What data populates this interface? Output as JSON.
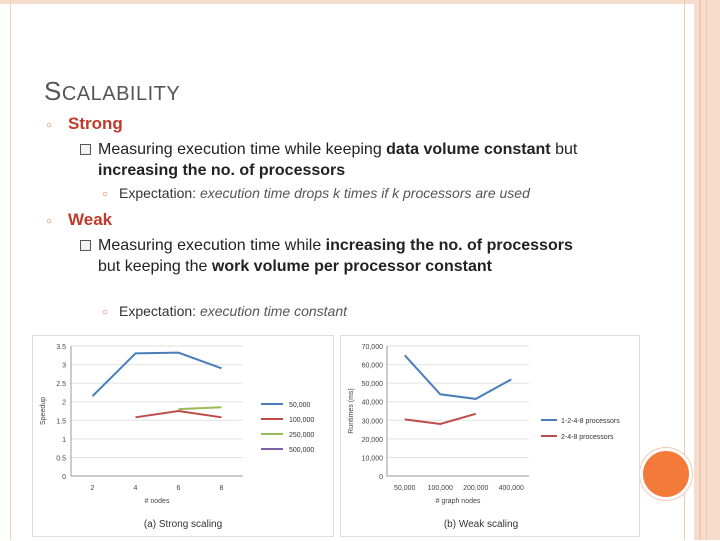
{
  "title": {
    "first": "S",
    "rest": "CALABILITY"
  },
  "strong": {
    "heading": "Strong",
    "desc_parts": [
      "Measuring execution time while keeping ",
      "data volume constant",
      " but ",
      "increasing the no. of processors"
    ],
    "expectation_label": "Expectation: ",
    "expectation_value": "execution time drops k times if k processors are used"
  },
  "weak": {
    "heading": "Weak",
    "desc_parts": [
      "Measuring execution time while ",
      "increasing the no. of processors",
      " but keeping the ",
      "work volume per processor constant"
    ],
    "expectation_label": "Expectation: ",
    "expectation_value": "execution time constant"
  },
  "colors": {
    "blue": "#4a7ebb",
    "red": "#be4b48",
    "green": "#9bbb59",
    "purple": "#7f5fa5",
    "accent": "#f47a3a"
  },
  "chart_data": [
    {
      "type": "line",
      "caption": "(a) Strong scaling",
      "xlabel": "# nodes",
      "ylabel": "Speedup",
      "x": [
        2,
        4,
        6,
        8
      ],
      "yticks": [
        "0",
        "0.5",
        "1",
        "1.5",
        "2",
        "2.5",
        "3",
        "3.5"
      ],
      "ylim": [
        0,
        3.5
      ],
      "series": [
        {
          "name": "50,000",
          "color": "#4a7ebb",
          "points": [
            [
              2,
              2.15
            ],
            [
              4,
              3.3
            ],
            [
              6,
              3.32
            ],
            [
              8,
              2.9
            ]
          ]
        },
        {
          "name": "100,000",
          "color": "#be4b48",
          "points": [
            [
              4,
              1.58
            ],
            [
              6,
              1.75
            ],
            [
              8,
              1.58
            ]
          ]
        },
        {
          "name": "250,000",
          "color": "#9bbb59",
          "points": [
            [
              6,
              1.8
            ],
            [
              8,
              1.85
            ]
          ]
        },
        {
          "name": "500,000",
          "color": "#7f5fa5",
          "points": []
        }
      ]
    },
    {
      "type": "line",
      "caption": "(b) Weak scaling",
      "xlabel": "# graph nodes",
      "ylabel": "Runtimes (ms)",
      "categories": [
        "50,000",
        "100,000",
        "200,000",
        "400,000"
      ],
      "yticks": [
        "0",
        "10,000",
        "20,000",
        "30,000",
        "40,000",
        "50,000",
        "60,000",
        "70,000"
      ],
      "ylim": [
        0,
        70000
      ],
      "series": [
        {
          "name": "1-2-4-8 processors",
          "color": "#4a7ebb",
          "values": [
            65000,
            44000,
            41500,
            52000
          ]
        },
        {
          "name": "2-4-8 processors",
          "color": "#be4b48",
          "values": [
            30500,
            28000,
            33500,
            null
          ]
        }
      ]
    }
  ]
}
